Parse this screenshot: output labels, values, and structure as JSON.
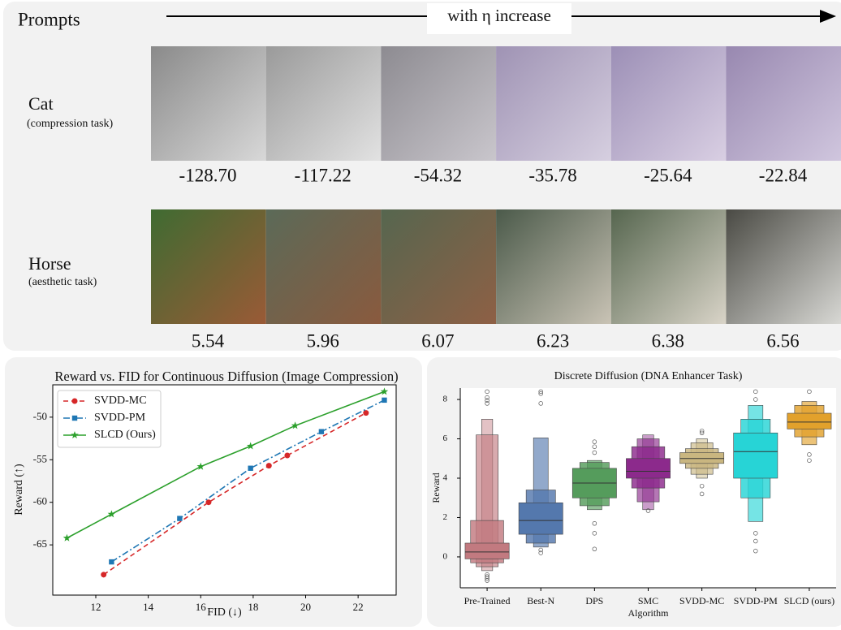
{
  "figure": {
    "prompts_label": "Prompts",
    "arrow_label": "with η increase",
    "rows": [
      {
        "prompt": "Cat",
        "task": "(compression task)",
        "scores": [
          "-128.70",
          "-117.22",
          "-54.32",
          "-35.78",
          "-25.64",
          "-22.84"
        ]
      },
      {
        "prompt": "Horse",
        "task": "(aesthetic task)",
        "scores": [
          "5.54",
          "5.96",
          "6.07",
          "6.23",
          "6.38",
          "6.56"
        ]
      }
    ]
  },
  "chart_data": [
    {
      "type": "line",
      "title": "Reward vs. FID for Continuous Diffusion (Image Compression)",
      "x_label": "FID (↓)",
      "y_label": "Reward (↑)",
      "xlim": [
        10.36,
        23.45
      ],
      "ylim": [
        -70.9,
        -46.2
      ],
      "xticks": [
        12,
        14,
        16,
        18,
        20,
        22
      ],
      "yticks": [
        -65,
        -60,
        -55,
        -50
      ],
      "legend": "upper-left",
      "series": [
        {
          "name": "SVDD-MC",
          "color": "#d62728",
          "linestyle": "dashed",
          "marker": "circle",
          "x": [
            12.3,
            16.3,
            18.6,
            19.3,
            22.3
          ],
          "y": [
            -68.5,
            -60,
            -55.7,
            -54.5,
            -49.5
          ]
        },
        {
          "name": "SVDD-PM",
          "color": "#1f77b4",
          "linestyle": "dashdot",
          "marker": "square",
          "x": [
            12.6,
            15.2,
            17.9,
            20.6,
            23.0
          ],
          "y": [
            -67,
            -61.9,
            -56,
            -51.7,
            -48
          ]
        },
        {
          "name": "SLCD (Ours)",
          "color": "#2ca02c",
          "linestyle": "solid",
          "marker": "star",
          "x": [
            10.9,
            12.6,
            16.0,
            17.9,
            19.6,
            23.0
          ],
          "y": [
            -64.2,
            -61.4,
            -55.8,
            -53.4,
            -51,
            -47
          ]
        }
      ]
    },
    {
      "type": "boxen",
      "title": "Discrete Diffusion (DNA Enhancer Task)",
      "x_label": "Algorithm",
      "y_label": "Reward",
      "ylim": [
        -1.57,
        8.58
      ],
      "yticks": [
        0,
        2,
        4,
        6,
        8
      ],
      "series": [
        {
          "name": "Pre-Trained",
          "color": "#c27a80",
          "median": 0.25,
          "boxes": [
            [
              -0.1,
              0.7
            ],
            [
              -0.3,
              1.85
            ],
            [
              -0.5,
              6.2
            ],
            [
              -0.7,
              7.0
            ]
          ],
          "outliers": [
            -0.9,
            -1.0,
            -1.1,
            -1.2,
            7.8,
            7.95,
            8.1,
            8.4
          ]
        },
        {
          "name": "Best-N",
          "color": "#5478ad",
          "median": 1.85,
          "boxes": [
            [
              1.15,
              2.75
            ],
            [
              0.7,
              3.4
            ],
            [
              0.5,
              6.05
            ]
          ],
          "outliers": [
            0.2,
            0.35,
            7.8,
            8.3,
            8.4
          ]
        },
        {
          "name": "DPS",
          "color": "#559c5c",
          "median": 3.75,
          "boxes": [
            [
              3.0,
              4.5
            ],
            [
              2.6,
              4.8
            ],
            [
              2.4,
              4.9
            ]
          ],
          "outliers": [
            0.4,
            1.2,
            1.7,
            5.3,
            5.6,
            5.85
          ]
        },
        {
          "name": "SMC",
          "color": "#8c2a8c",
          "median": 4.35,
          "boxes": [
            [
              4.0,
              5.0
            ],
            [
              3.5,
              5.6
            ],
            [
              2.8,
              6.0
            ],
            [
              2.4,
              6.2
            ]
          ],
          "outliers": [
            2.35
          ]
        },
        {
          "name": "SVDD-MC",
          "color": "#c9b680",
          "median": 5.0,
          "boxes": [
            [
              4.75,
              5.3
            ],
            [
              4.5,
              5.5
            ],
            [
              4.2,
              5.8
            ],
            [
              4.0,
              6.0
            ]
          ],
          "outliers": [
            3.2,
            3.6,
            6.3,
            6.4
          ]
        },
        {
          "name": "SVDD-PM",
          "color": "#27d4d6",
          "median": 5.35,
          "boxes": [
            [
              4.0,
              6.3
            ],
            [
              3.0,
              7.0
            ],
            [
              1.8,
              7.7
            ]
          ],
          "outliers": [
            0.3,
            0.8,
            1.2,
            8.0,
            8.4
          ]
        },
        {
          "name": "SLCD (ours)",
          "color": "#e2a12c",
          "median": 6.85,
          "boxes": [
            [
              6.5,
              7.3
            ],
            [
              6.1,
              7.7
            ],
            [
              5.7,
              7.9
            ]
          ],
          "outliers": [
            4.9,
            5.2,
            8.4
          ]
        }
      ]
    }
  ]
}
